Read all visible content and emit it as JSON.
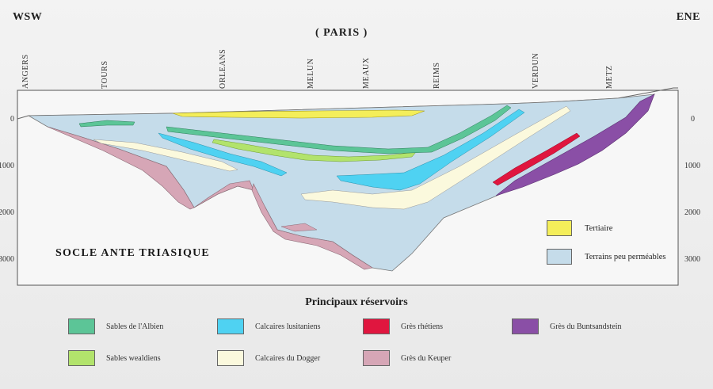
{
  "header": {
    "west": "WSW",
    "east": "ENE",
    "capital": "( PARIS )"
  },
  "towns": [
    "ANGERS",
    "TOURS",
    "ORLEANS",
    "MELUN",
    "MEAUX",
    "REIMS",
    "VERDUN",
    "METZ"
  ],
  "depth_ticks_left": [
    "0",
    "1000",
    "2000",
    "3000"
  ],
  "depth_ticks_right": [
    "0",
    "1000",
    "2000",
    "3000"
  ],
  "basement_label": "SOCLE ANTE TRIASIQUE",
  "inset_legend": [
    {
      "label": "Tertiaire",
      "color": "#f4ee5a"
    },
    {
      "label": "Terrains peu perméables",
      "color": "#c5dcea"
    }
  ],
  "reservoirs": {
    "title": "Principaux réservoirs",
    "items": [
      {
        "label": "Sables de l'Albien",
        "color": "#5cc597"
      },
      {
        "label": "Calcaires lusitaniens",
        "color": "#4fd2f2"
      },
      {
        "label": "Grès rhétiens",
        "color": "#e0163f"
      },
      {
        "label": "Grès du Buntsandstein",
        "color": "#8a4fa6"
      },
      {
        "label": "Sables wealdiens",
        "color": "#b2e36c"
      },
      {
        "label": "Calcaires du Dogger",
        "color": "#fbf9dd"
      },
      {
        "label": "Grès du Keuper",
        "color": "#d6a6b6"
      }
    ]
  }
}
